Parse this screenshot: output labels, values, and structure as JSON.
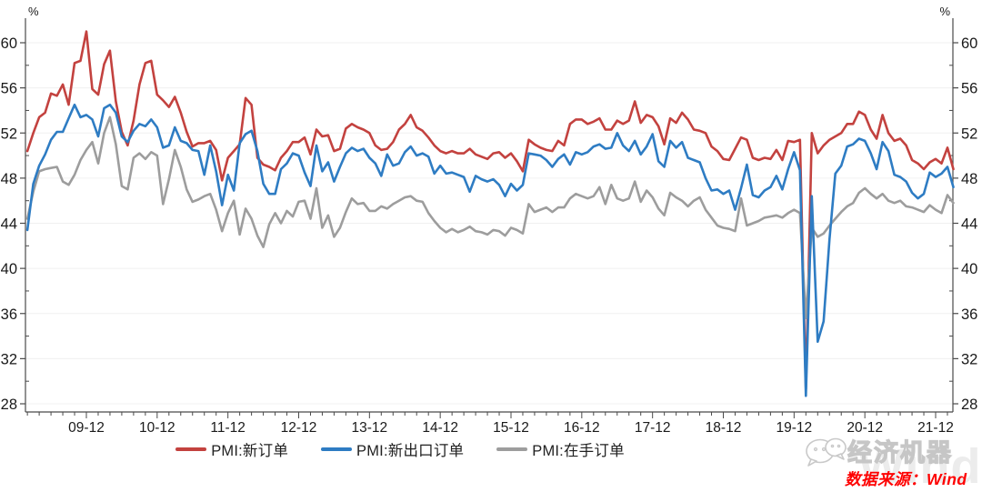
{
  "chart": {
    "unit_left": "%",
    "unit_right": "%"
  },
  "chart_data": {
    "type": "line",
    "title": "",
    "x_start": "2009-02",
    "x_end": "2022-03",
    "x_interval": "month",
    "x_tick_labels": [
      "09-12",
      "10-12",
      "11-12",
      "12-12",
      "13-12",
      "14-12",
      "15-12",
      "16-12",
      "17-12",
      "18-12",
      "19-12",
      "20-12",
      "21-12"
    ],
    "y_ticks": [
      28,
      32,
      36,
      40,
      44,
      48,
      52,
      56,
      60
    ],
    "ylim": [
      28,
      60
    ],
    "y_unit": "%",
    "grid": true,
    "legend_position": "bottom",
    "series": [
      {
        "name": "PMI:新订单",
        "color": "#c3423f",
        "values": [
          50.4,
          52.0,
          53.4,
          53.8,
          55.5,
          55.3,
          56.3,
          54.5,
          58.2,
          58.4,
          61.0,
          55.9,
          55.4,
          58.1,
          59.3,
          54.8,
          52.1,
          50.9,
          53.1,
          56.3,
          58.2,
          58.4,
          55.4,
          54.9,
          54.3,
          55.2,
          53.8,
          52.1,
          50.8,
          51.1,
          51.1,
          51.3,
          50.5,
          47.8,
          49.8,
          50.4,
          51.0,
          55.1,
          54.5,
          49.8,
          49.2,
          49.0,
          48.7,
          49.8,
          50.4,
          51.2,
          51.2,
          51.6,
          50.1,
          52.3,
          51.7,
          51.8,
          50.4,
          50.6,
          52.4,
          52.8,
          52.5,
          52.3,
          52.0,
          50.9,
          50.5,
          50.6,
          51.2,
          52.3,
          52.8,
          53.6,
          52.5,
          52.2,
          51.6,
          50.9,
          50.4,
          50.2,
          50.4,
          50.2,
          50.2,
          50.6,
          50.1,
          49.9,
          49.7,
          50.2,
          50.3,
          49.8,
          50.2,
          49.5,
          48.6,
          51.4,
          51.0,
          50.7,
          50.5,
          50.4,
          51.3,
          50.9,
          52.8,
          53.2,
          53.2,
          52.8,
          53.0,
          53.3,
          52.3,
          52.3,
          53.1,
          52.8,
          53.1,
          54.8,
          52.9,
          53.6,
          53.4,
          52.6,
          51.0,
          53.3,
          52.9,
          53.8,
          53.2,
          52.3,
          52.2,
          52.0,
          50.8,
          50.4,
          49.7,
          49.6,
          50.6,
          51.6,
          51.4,
          49.8,
          49.6,
          49.8,
          49.7,
          50.5,
          49.6,
          51.3,
          51.2,
          51.4,
          29.3,
          52.0,
          50.2,
          50.9,
          51.4,
          51.7,
          52.0,
          52.8,
          52.8,
          53.9,
          53.6,
          52.3,
          51.5,
          53.6,
          52.0,
          51.3,
          51.5,
          50.9,
          49.6,
          49.3,
          48.8,
          49.4,
          49.7,
          49.3,
          50.7,
          48.8
        ]
      },
      {
        "name": "PMI:新出口订单",
        "color": "#2e7cc3",
        "values": [
          43.4,
          47.5,
          49.1,
          50.1,
          51.4,
          52.1,
          52.1,
          53.3,
          54.5,
          53.4,
          53.6,
          53.2,
          51.7,
          54.2,
          54.5,
          53.8,
          51.7,
          51.2,
          52.2,
          52.8,
          52.6,
          53.2,
          52.5,
          50.7,
          50.9,
          52.5,
          51.3,
          51.1,
          50.5,
          50.4,
          48.3,
          50.9,
          48.6,
          45.6,
          48.3,
          46.9,
          51.1,
          51.9,
          52.2,
          50.4,
          47.5,
          46.6,
          46.6,
          48.8,
          49.3,
          50.2,
          50.0,
          48.5,
          47.3,
          50.9,
          48.6,
          49.4,
          47.7,
          49.0,
          50.2,
          50.7,
          50.4,
          50.6,
          49.8,
          49.3,
          48.2,
          50.1,
          49.1,
          49.3,
          50.3,
          50.8,
          50.0,
          50.2,
          49.9,
          48.4,
          49.1,
          48.4,
          48.5,
          48.3,
          48.1,
          46.8,
          48.2,
          47.9,
          47.7,
          47.9,
          47.4,
          46.4,
          47.5,
          46.9,
          47.4,
          50.2,
          50.1,
          50.0,
          49.6,
          49.0,
          49.7,
          50.1,
          49.2,
          50.3,
          50.1,
          50.3,
          50.8,
          51.0,
          50.6,
          50.7,
          52.0,
          50.9,
          50.4,
          51.3,
          50.1,
          50.8,
          51.9,
          49.5,
          49.0,
          51.3,
          50.7,
          51.2,
          49.8,
          49.6,
          49.4,
          48.0,
          46.9,
          47.0,
          46.6,
          46.9,
          45.2,
          47.1,
          49.2,
          46.5,
          46.3,
          46.9,
          47.2,
          48.2,
          47.0,
          48.8,
          50.3,
          48.7,
          28.7,
          46.4,
          33.5,
          35.3,
          42.6,
          48.4,
          49.1,
          50.8,
          51.0,
          51.5,
          51.3,
          50.2,
          48.8,
          51.2,
          50.4,
          48.3,
          48.1,
          47.7,
          46.7,
          46.2,
          46.6,
          48.5,
          48.1,
          48.4,
          49.0,
          47.2
        ]
      },
      {
        "name": "PMI:在手订单",
        "color": "#9d9d9d",
        "values": [
          44.4,
          46.8,
          48.6,
          48.8,
          48.9,
          49.0,
          47.7,
          47.4,
          48.3,
          49.6,
          50.5,
          51.2,
          49.3,
          52.0,
          53.4,
          51.0,
          47.3,
          47.0,
          49.8,
          50.2,
          49.7,
          50.3,
          50.0,
          45.7,
          47.9,
          50.5,
          49.0,
          47.0,
          45.9,
          46.1,
          46.4,
          46.6,
          45.2,
          43.3,
          44.9,
          46.0,
          43.0,
          45.3,
          44.4,
          42.9,
          41.9,
          43.9,
          44.9,
          44.0,
          45.1,
          44.6,
          45.9,
          46.0,
          44.4,
          47.1,
          43.6,
          44.7,
          42.8,
          43.6,
          45.0,
          46.2,
          45.7,
          45.8,
          45.1,
          45.1,
          45.5,
          45.3,
          45.7,
          46.0,
          46.3,
          46.4,
          46.0,
          45.9,
          44.9,
          44.2,
          43.6,
          43.2,
          43.5,
          43.2,
          43.4,
          43.7,
          43.3,
          43.2,
          43.0,
          43.4,
          43.3,
          42.9,
          43.6,
          43.4,
          43.1,
          45.7,
          45.0,
          45.2,
          45.4,
          45.0,
          45.4,
          45.4,
          46.2,
          46.6,
          46.4,
          46.2,
          46.4,
          47.2,
          45.7,
          47.4,
          46.2,
          46.0,
          46.2,
          47.7,
          45.9,
          46.9,
          46.3,
          45.3,
          44.7,
          46.7,
          46.3,
          46.0,
          45.5,
          46.0,
          46.3,
          45.2,
          44.5,
          43.8,
          43.6,
          43.5,
          43.3,
          46.2,
          43.8,
          44.0,
          44.2,
          44.5,
          44.6,
          44.7,
          44.5,
          44.9,
          45.2,
          44.9,
          35.6,
          43.6,
          42.8,
          43.1,
          43.8,
          44.4,
          45.0,
          45.5,
          45.8,
          46.7,
          47.1,
          46.6,
          46.2,
          46.6,
          46.0,
          45.8,
          46.0,
          45.5,
          45.4,
          45.2,
          45.0,
          45.6,
          45.2,
          44.9,
          46.5,
          45.8
        ]
      }
    ]
  },
  "legend": {
    "items": [
      {
        "label": "PMI:新订单",
        "color": "#c3423f"
      },
      {
        "label": "PMI:新出口订单",
        "color": "#2e7cc3"
      },
      {
        "label": "PMI:在手订单",
        "color": "#9d9d9d"
      }
    ]
  },
  "footer": {
    "source_text": "数据来源：Wind",
    "brand_text": "经济机器",
    "watermark_text": "Wind"
  }
}
